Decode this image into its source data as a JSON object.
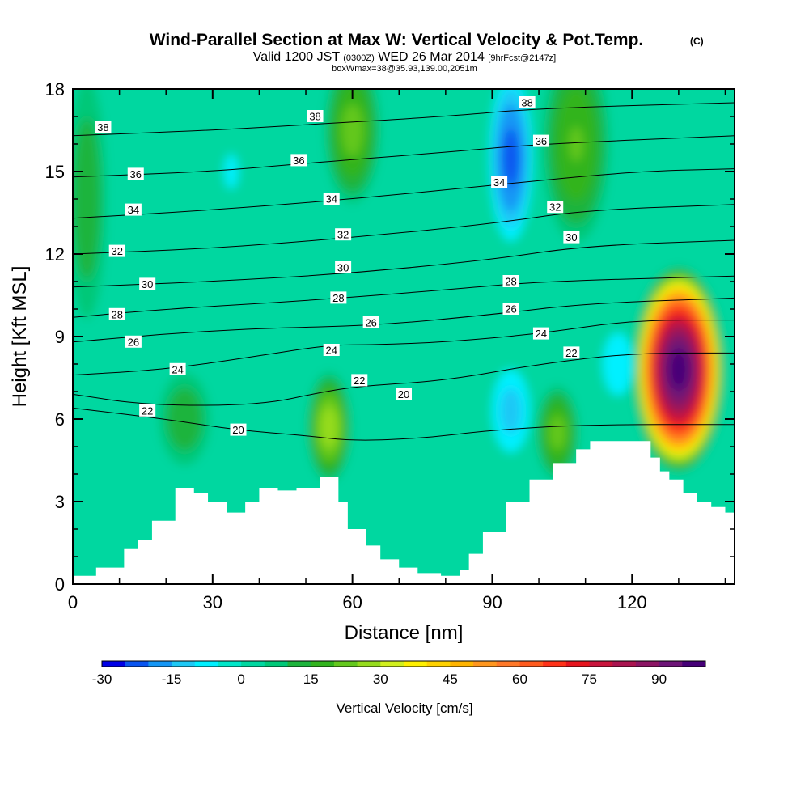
{
  "header": {
    "title": "Wind-Parallel Section at Max W: Vertical Velocity & Pot.Temp.",
    "title_tag": "(C)",
    "valid_prefix": "Valid 1200 JST",
    "valid_zone": "(0300Z)",
    "valid_date": "WED 26 Mar 2014",
    "valid_fcst": "[9hrFcst@2147z]",
    "box_info": "boxWmax=38@35.93,139.00,2051m"
  },
  "chart_data": {
    "type": "heatmap",
    "xlabel": "Distance [nm]",
    "ylabel": "Height [Kft MSL]",
    "xlim": [
      0,
      142
    ],
    "ylim": [
      0,
      18
    ],
    "x_ticks": [
      "0",
      "30",
      "60",
      "90",
      "120"
    ],
    "y_ticks": [
      "0",
      "3",
      "6",
      "9",
      "12",
      "15",
      "18"
    ],
    "colorbar": {
      "label": "Vertical Velocity [cm/s]",
      "tick_labels": [
        "-30",
        "-15",
        "0",
        "15",
        "30",
        "45",
        "60",
        "75",
        "90"
      ],
      "min": -30,
      "max": 100,
      "step": 5,
      "colors": [
        "#0000e6",
        "#0a55f0",
        "#1496f5",
        "#1ec8f5",
        "#00f0ff",
        "#00e6c8",
        "#00d7a0",
        "#00c878",
        "#1eb43c",
        "#32b41e",
        "#64c81e",
        "#96dc1e",
        "#d2f01e",
        "#fff000",
        "#ffd200",
        "#ffb400",
        "#ff961e",
        "#ff7828",
        "#ff5a1e",
        "#ff3219",
        "#e6141e",
        "#c8143c",
        "#aa1450",
        "#8c1464",
        "#6e1478",
        "#460078"
      ]
    },
    "terrain_profile": [
      [
        0,
        0.3
      ],
      [
        5,
        0.6
      ],
      [
        11,
        1.3
      ],
      [
        14,
        1.6
      ],
      [
        17,
        2.3
      ],
      [
        22,
        3.5
      ],
      [
        26,
        3.3
      ],
      [
        29,
        3.0
      ],
      [
        33,
        2.6
      ],
      [
        37,
        3.0
      ],
      [
        40,
        3.5
      ],
      [
        44,
        3.4
      ],
      [
        48,
        3.5
      ],
      [
        53,
        3.9
      ],
      [
        57,
        3.0
      ],
      [
        59,
        2.0
      ],
      [
        63,
        1.4
      ],
      [
        66,
        0.9
      ],
      [
        70,
        0.6
      ],
      [
        74,
        0.4
      ],
      [
        79,
        0.3
      ],
      [
        83,
        0.5
      ],
      [
        85,
        1.1
      ],
      [
        88,
        1.9
      ],
      [
        93,
        3.0
      ],
      [
        98,
        3.8
      ],
      [
        103,
        4.4
      ],
      [
        108,
        4.9
      ],
      [
        111,
        5.2
      ],
      [
        120,
        5.2
      ],
      [
        124,
        4.6
      ],
      [
        126,
        4.1
      ],
      [
        128,
        3.8
      ],
      [
        131,
        3.3
      ],
      [
        134,
        3.0
      ],
      [
        137,
        2.8
      ],
      [
        140,
        2.6
      ],
      [
        142,
        2.6
      ]
    ],
    "velocity_features": [
      {
        "x": 130,
        "z": 7.8,
        "w_max": 98,
        "x_halfwidth": 6,
        "z_halfwidth": 2.8
      },
      {
        "x": 55,
        "z": 5.7,
        "w_max": 28,
        "x_halfwidth": 3,
        "z_halfwidth": 1.6
      },
      {
        "x": 104,
        "z": 5.5,
        "w_max": 22,
        "x_halfwidth": 3,
        "z_halfwidth": 1.4
      },
      {
        "x": 24,
        "z": 6.0,
        "w_max": 14,
        "x_halfwidth": 4,
        "z_halfwidth": 1.5
      },
      {
        "x": 60,
        "z": 16.5,
        "w_max": 22,
        "x_halfwidth": 4,
        "z_halfwidth": 2.2
      },
      {
        "x": 108,
        "z": 16.0,
        "w_max": 20,
        "x_halfwidth": 5,
        "z_halfwidth": 3.0
      },
      {
        "x": 94,
        "z": 15.5,
        "w_max": -22,
        "x_halfwidth": 3,
        "z_halfwidth": 2.5
      },
      {
        "x": 94,
        "z": 6.3,
        "w_max": -12,
        "x_halfwidth": 3,
        "z_halfwidth": 1.4
      },
      {
        "x": 117,
        "z": 8.0,
        "w_max": -8,
        "x_halfwidth": 3,
        "z_halfwidth": 1.3
      },
      {
        "x": 34,
        "z": 15.0,
        "w_max": -5,
        "x_halfwidth": 5,
        "z_halfwidth": 3.0
      },
      {
        "x": 3,
        "z": 14.0,
        "w_max": 14,
        "x_halfwidth": 3,
        "z_halfwidth": 4.0
      }
    ],
    "theta_contours": [
      {
        "label": "20",
        "points": [
          [
            0,
            6.4
          ],
          [
            20,
            6.0
          ],
          [
            35,
            5.6
          ],
          [
            50,
            5.4
          ],
          [
            60,
            5.2
          ],
          [
            75,
            5.3
          ],
          [
            90,
            5.6
          ],
          [
            110,
            5.8
          ],
          [
            142,
            5.8
          ]
        ]
      },
      {
        "label": "22",
        "points": [
          [
            0,
            6.9
          ],
          [
            16,
            6.5
          ],
          [
            40,
            6.5
          ],
          [
            54,
            7.0
          ],
          [
            62,
            7.2
          ],
          [
            80,
            7.4
          ],
          [
            100,
            8.0
          ],
          [
            120,
            8.4
          ],
          [
            142,
            8.4
          ]
        ]
      },
      {
        "label": "24",
        "points": [
          [
            0,
            7.6
          ],
          [
            20,
            7.8
          ],
          [
            40,
            8.3
          ],
          [
            55,
            8.7
          ],
          [
            65,
            8.7
          ],
          [
            80,
            8.8
          ],
          [
            100,
            9.1
          ],
          [
            120,
            9.6
          ],
          [
            142,
            9.6
          ]
        ]
      },
      {
        "label": "26",
        "points": [
          [
            0,
            8.8
          ],
          [
            20,
            9.1
          ],
          [
            40,
            9.3
          ],
          [
            65,
            9.4
          ],
          [
            90,
            9.8
          ],
          [
            110,
            10.2
          ],
          [
            142,
            10.4
          ]
        ]
      },
      {
        "label": "28",
        "points": [
          [
            0,
            9.7
          ],
          [
            20,
            10.0
          ],
          [
            50,
            10.3
          ],
          [
            80,
            10.7
          ],
          [
            100,
            11.0
          ],
          [
            142,
            11.2
          ]
        ]
      },
      {
        "label": "30",
        "points": [
          [
            0,
            10.8
          ],
          [
            30,
            11.0
          ],
          [
            60,
            11.3
          ],
          [
            90,
            11.8
          ],
          [
            110,
            12.3
          ],
          [
            142,
            12.5
          ]
        ]
      },
      {
        "label": "32",
        "points": [
          [
            0,
            12.0
          ],
          [
            30,
            12.2
          ],
          [
            60,
            12.6
          ],
          [
            90,
            13.1
          ],
          [
            110,
            13.6
          ],
          [
            142,
            13.8
          ]
        ]
      },
      {
        "label": "34",
        "points": [
          [
            0,
            13.3
          ],
          [
            30,
            13.6
          ],
          [
            60,
            14.0
          ],
          [
            90,
            14.5
          ],
          [
            120,
            15.0
          ],
          [
            142,
            15.1
          ]
        ]
      },
      {
        "label": "36",
        "points": [
          [
            0,
            14.8
          ],
          [
            30,
            15.0
          ],
          [
            50,
            15.3
          ],
          [
            80,
            15.7
          ],
          [
            100,
            16.0
          ],
          [
            142,
            16.3
          ]
        ]
      },
      {
        "label": "38",
        "points": [
          [
            0,
            16.3
          ],
          [
            30,
            16.5
          ],
          [
            50,
            16.7
          ],
          [
            80,
            17.0
          ],
          [
            100,
            17.3
          ],
          [
            142,
            17.5
          ]
        ]
      }
    ],
    "contour_labels": [
      {
        "text": "38",
        "x": 6.5,
        "z": 16.6
      },
      {
        "text": "36",
        "x": 13.5,
        "z": 14.9
      },
      {
        "text": "34",
        "x": 13,
        "z": 13.6
      },
      {
        "text": "32",
        "x": 9.5,
        "z": 12.1
      },
      {
        "text": "30",
        "x": 16,
        "z": 10.9
      },
      {
        "text": "28",
        "x": 9.5,
        "z": 9.8
      },
      {
        "text": "26",
        "x": 13,
        "z": 8.8
      },
      {
        "text": "24",
        "x": 22.5,
        "z": 7.8
      },
      {
        "text": "22",
        "x": 16,
        "z": 6.3
      },
      {
        "text": "20",
        "x": 35.5,
        "z": 5.6
      },
      {
        "text": "38",
        "x": 52,
        "z": 17.0
      },
      {
        "text": "36",
        "x": 48.5,
        "z": 15.4
      },
      {
        "text": "34",
        "x": 55.5,
        "z": 14.0
      },
      {
        "text": "32",
        "x": 58,
        "z": 12.7
      },
      {
        "text": "30",
        "x": 58,
        "z": 11.5
      },
      {
        "text": "28",
        "x": 57,
        "z": 10.4
      },
      {
        "text": "26",
        "x": 64,
        "z": 9.5
      },
      {
        "text": "24",
        "x": 55.5,
        "z": 8.5
      },
      {
        "text": "22",
        "x": 61.5,
        "z": 7.4
      },
      {
        "text": "20",
        "x": 71,
        "z": 6.9
      },
      {
        "text": "38",
        "x": 97.5,
        "z": 17.5
      },
      {
        "text": "36",
        "x": 100.5,
        "z": 16.1
      },
      {
        "text": "34",
        "x": 91.5,
        "z": 14.6
      },
      {
        "text": "32",
        "x": 103.5,
        "z": 13.7
      },
      {
        "text": "30",
        "x": 107,
        "z": 12.6
      },
      {
        "text": "28",
        "x": 94,
        "z": 11.0
      },
      {
        "text": "26",
        "x": 94,
        "z": 10.0
      },
      {
        "text": "24",
        "x": 100.5,
        "z": 9.1
      },
      {
        "text": "22",
        "x": 107,
        "z": 8.4
      }
    ]
  }
}
